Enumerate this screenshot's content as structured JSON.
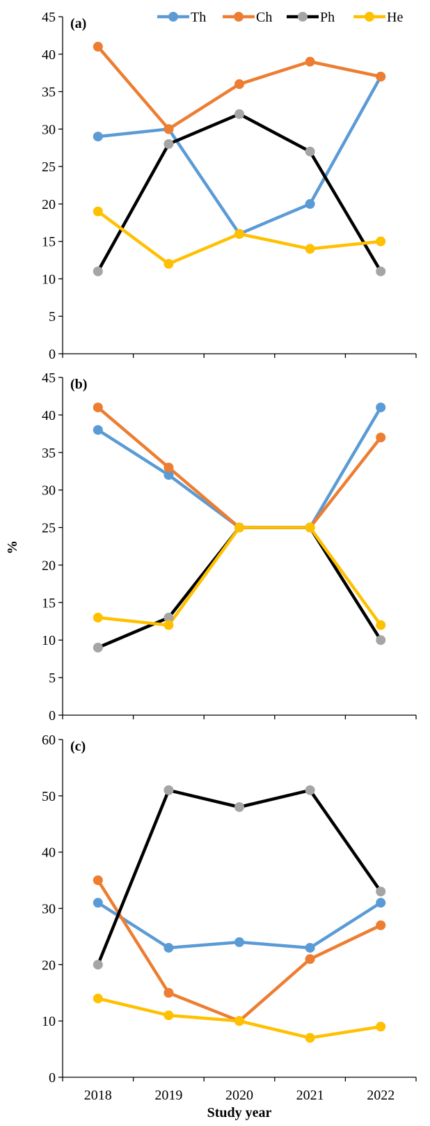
{
  "chart_data": [
    {
      "type": "line",
      "panel_label": "(a)",
      "x": [
        "2018",
        "2019",
        "2020",
        "2021",
        "2022"
      ],
      "ylim": [
        0,
        45
      ],
      "yticks": [
        0,
        5,
        10,
        15,
        20,
        25,
        30,
        35,
        40,
        45
      ],
      "series": [
        {
          "name": "Th",
          "values": [
            29,
            30,
            16,
            20,
            37
          ]
        },
        {
          "name": "Ch",
          "values": [
            41,
            30,
            36,
            39,
            37
          ]
        },
        {
          "name": "Ph",
          "values": [
            11,
            28,
            32,
            27,
            11
          ]
        },
        {
          "name": "He",
          "values": [
            19,
            12,
            16,
            14,
            15
          ]
        }
      ]
    },
    {
      "type": "line",
      "panel_label": "(b)",
      "x": [
        "2018",
        "2019",
        "2020",
        "2021",
        "2022"
      ],
      "ylim": [
        0,
        45
      ],
      "yticks": [
        0,
        5,
        10,
        15,
        20,
        25,
        30,
        35,
        40,
        45
      ],
      "series": [
        {
          "name": "Th",
          "values": [
            38,
            32,
            25,
            25,
            41
          ]
        },
        {
          "name": "Ch",
          "values": [
            41,
            33,
            25,
            25,
            37
          ]
        },
        {
          "name": "Ph",
          "values": [
            9,
            13,
            25,
            25,
            10
          ]
        },
        {
          "name": "He",
          "values": [
            13,
            12,
            25,
            25,
            12
          ]
        }
      ]
    },
    {
      "type": "line",
      "panel_label": "(c)",
      "x": [
        "2018",
        "2019",
        "2020",
        "2021",
        "2022"
      ],
      "ylim": [
        0,
        60
      ],
      "yticks": [
        0,
        10,
        20,
        30,
        40,
        50,
        60
      ],
      "series": [
        {
          "name": "Th",
          "values": [
            31,
            23,
            24,
            23,
            31
          ]
        },
        {
          "name": "Ch",
          "values": [
            35,
            15,
            10,
            21,
            27
          ]
        },
        {
          "name": "Ph",
          "values": [
            20,
            51,
            48,
            51,
            33
          ]
        },
        {
          "name": "He",
          "values": [
            14,
            11,
            10,
            7,
            9
          ]
        }
      ]
    }
  ],
  "ylabel": "%",
  "xlabel": "Study year",
  "legend": {
    "position": "top-right",
    "items": [
      {
        "name": "Th",
        "line_color": "#5B9BD5",
        "marker_color": "#5B9BD5"
      },
      {
        "name": "Ch",
        "line_color": "#ED7D31",
        "marker_color": "#ED7D31"
      },
      {
        "name": "Ph",
        "line_color": "#000000",
        "marker_color": "#A5A5A5"
      },
      {
        "name": "He",
        "line_color": "#FFC000",
        "marker_color": "#FFC000"
      }
    ]
  }
}
